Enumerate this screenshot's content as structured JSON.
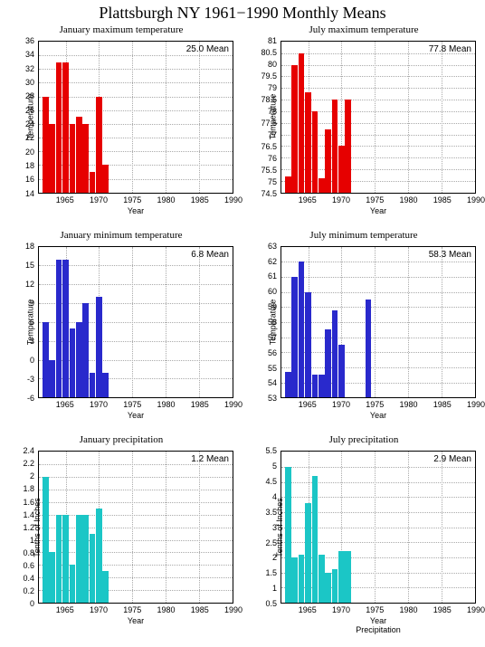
{
  "page_title": "Plattsburgh NY  1961−1990 Monthly Means",
  "x_axis_label": "Year",
  "x_ticks": [
    1965,
    1970,
    1975,
    1980,
    1985,
    1990
  ],
  "x_range": [
    1961,
    1990
  ],
  "bar_years": [
    1962,
    1963,
    1964,
    1965,
    1966,
    1967,
    1968,
    1969,
    1970,
    1971
  ],
  "bar_width_ratio": 0.9,
  "charts": [
    {
      "title": "January maximum temperature",
      "mean_label": "25.0 Mean",
      "ylabel": "Temperature",
      "y_range": [
        14,
        36
      ],
      "y_step": 2,
      "bar_color": "#e60000",
      "values": [
        28,
        24,
        33,
        33,
        24,
        25,
        24,
        17,
        28,
        18
      ]
    },
    {
      "title": "July maximum temperature",
      "mean_label": "77.8 Mean",
      "ylabel": "Temperature",
      "y_range": [
        74.5,
        81
      ],
      "y_step": 0.5,
      "bar_color": "#e60000",
      "values": [
        75.2,
        80.0,
        80.5,
        78.8,
        78.0,
        75.1,
        77.2,
        78.5,
        76.5,
        78.5
      ]
    },
    {
      "title": "January minimum temperature",
      "mean_label": "6.8 Mean",
      "ylabel": "Temperature",
      "y_range": [
        -6,
        18
      ],
      "y_step": 3,
      "bar_color": "#2929cc",
      "values": [
        6,
        0,
        16,
        16,
        5,
        6,
        9,
        -2,
        10,
        -2
      ]
    },
    {
      "title": "July minimum temperature",
      "mean_label": "58.3 Mean",
      "ylabel": "Temperature",
      "y_range": [
        53,
        63
      ],
      "y_step": 1,
      "bar_color": "#2929cc",
      "values": [
        54.7,
        61,
        62,
        60,
        54.5,
        54.5,
        57.5,
        58.8,
        56.5,
        null,
        null,
        null,
        59.5
      ],
      "years_override": [
        1962,
        1963,
        1964,
        1965,
        1966,
        1967,
        1968,
        1969,
        1970,
        1971,
        1972,
        1973,
        1974
      ]
    },
    {
      "title": "January precipitation",
      "mean_label": "1.2 Mean",
      "ylabel": "Tenths of Inches",
      "y_range": [
        0,
        2.4
      ],
      "y_step": 0.2,
      "bar_color": "#1bc6c6",
      "values": [
        2.0,
        0.8,
        1.4,
        1.4,
        0.6,
        1.4,
        1.4,
        1.1,
        1.5,
        0.5
      ]
    },
    {
      "title": "July precipitation",
      "mean_label": "2.9 Mean",
      "ylabel": "Tenths of Inches",
      "y_range": [
        0.5,
        5.5
      ],
      "y_step": 0.5,
      "bar_color": "#1bc6c6",
      "values": [
        5.0,
        2.0,
        2.1,
        3.8,
        4.7,
        2.1,
        1.5,
        1.6,
        2.2,
        2.2
      ],
      "bottom_extra_label": "Precipitation"
    }
  ],
  "colors": {
    "background": "#ffffff",
    "grid": "#aaaaaa",
    "axis": "#000000",
    "text": "#000000"
  },
  "typography": {
    "title_fontsize_pt": 18,
    "subtitle_fontsize_pt": 11,
    "tick_fontsize_pt": 9
  }
}
